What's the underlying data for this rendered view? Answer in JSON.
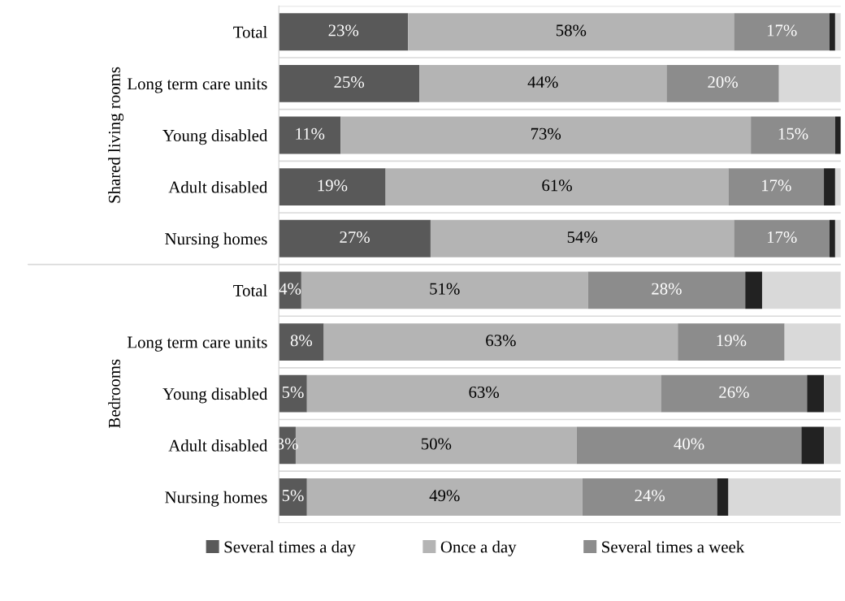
{
  "chart_data": {
    "type": "bar",
    "orientation": "horizontal",
    "stacked": true,
    "categories": [
      "Total",
      "Long term care units",
      "Young disabled",
      "Adult disabled",
      "Nursing homes",
      "Total",
      "Long term care units",
      "Young disabled",
      "Adult disabled",
      "Nursing homes"
    ],
    "series": [
      {
        "name": "Several times a day",
        "color": "#595959",
        "values": [
          23,
          25,
          11,
          19,
          27,
          4,
          8,
          5,
          3,
          5
        ],
        "value_labels": [
          "23%",
          "25%",
          "11%",
          "19%",
          "27%",
          "4%",
          "8%",
          "5%",
          "3%",
          "5%"
        ]
      },
      {
        "name": "Once a day",
        "color": "#b4b4b4",
        "values": [
          58,
          44,
          73,
          61,
          54,
          51,
          63,
          63,
          50,
          49
        ],
        "value_labels": [
          "58%",
          "44%",
          "73%",
          "61%",
          "54%",
          "51%",
          "63%",
          "63%",
          "50%",
          "49%"
        ]
      },
      {
        "name": "Several times a week",
        "color": "#8c8c8c",
        "values": [
          17,
          20,
          15,
          17,
          17,
          28,
          19,
          26,
          40,
          24
        ],
        "value_labels": [
          "17%",
          "20%",
          "15%",
          "17%",
          "17%",
          "28%",
          "19%",
          "26%",
          "40%",
          "24%"
        ]
      },
      {
        "color": "#222222",
        "values": [
          1,
          0,
          1,
          2,
          1,
          3,
          0,
          3,
          4,
          2
        ]
      },
      {
        "color": "#d9d9d9",
        "values": [
          1,
          11,
          0,
          1,
          1,
          14,
          10,
          3,
          3,
          20
        ]
      }
    ],
    "xlim": [
      0,
      100
    ],
    "tick_labels": "y",
    "legend": "bottom",
    "grid": "y",
    "annotations": [
      "Shared living rooms",
      "Bedrooms"
    ]
  }
}
